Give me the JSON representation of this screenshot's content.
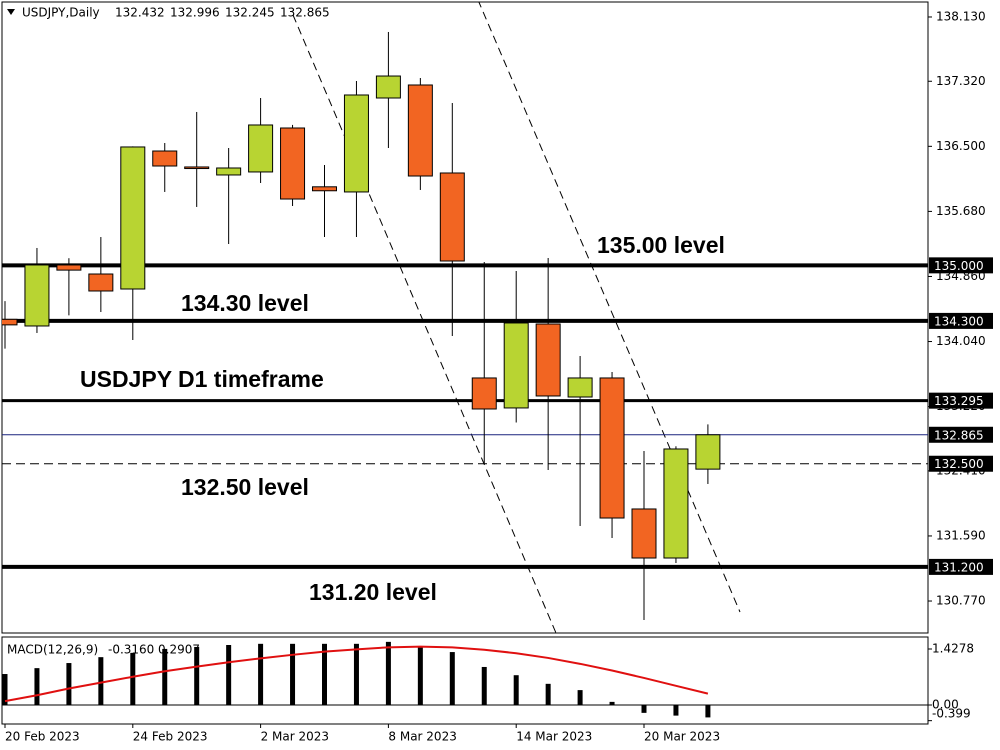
{
  "chart_data": {
    "type": "candlestick",
    "symbol": "USDJPY,Daily",
    "categories": [
      "20 Feb 2023",
      null,
      null,
      null,
      "24 Feb 2023",
      null,
      null,
      null,
      "2 Mar 2023",
      null,
      null,
      null,
      "8 Mar 2023",
      null,
      null,
      null,
      "14 Mar 2023",
      null,
      null,
      null,
      "20 Mar 2023",
      null,
      null
    ],
    "open": [
      134.32,
      134.236,
      135.005,
      134.891,
      134.702,
      136.441,
      136.24,
      136.139,
      136.177,
      136.731,
      135.99,
      135.925,
      137.109,
      137.273,
      136.164,
      133.581,
      133.203,
      134.261,
      133.341,
      133.581,
      131.93,
      131.312,
      132.432
    ],
    "high": [
      134.55,
      135.219,
      135.09,
      135.357,
      136.5,
      136.542,
      136.933,
      136.479,
      137.109,
      136.77,
      136.265,
      137.323,
      137.941,
      137.361,
      137.046,
      135.042,
      134.929,
      135.093,
      133.858,
      133.656,
      132.661,
      132.72,
      132.996
    ],
    "low": [
      133.95,
      134.148,
      134.37,
      134.412,
      134.059,
      135.925,
      135.736,
      135.269,
      136.038,
      135.748,
      135.357,
      135.357,
      136.479,
      135.95,
      134.11,
      132.497,
      133.02,
      132.421,
      131.716,
      131.564,
      130.531,
      131.249,
      132.245
    ],
    "close": [
      134.25,
      135.005,
      134.94,
      134.677,
      136.492,
      136.252,
      136.22,
      136.227,
      136.769,
      135.836,
      135.94,
      137.147,
      137.386,
      136.126,
      135.055,
      133.19,
      134.274,
      133.354,
      133.581,
      131.816,
      131.312,
      132.686,
      132.865
    ],
    "up_color": "#b8d432",
    "down_color": "#f26522",
    "ylim": [
      130.367,
      138.344
    ],
    "yticks": [
      {
        "value": 138.13,
        "label": "138.130"
      },
      {
        "value": 137.32,
        "label": "137.320"
      },
      {
        "value": 136.5,
        "label": "136.500"
      },
      {
        "value": 135.68,
        "label": "135.680"
      },
      {
        "value": 134.86,
        "label": "134.860"
      },
      {
        "value": 134.04,
        "label": "134.040"
      },
      {
        "value": 133.22,
        "label": "133.220"
      },
      {
        "value": 132.41,
        "label": "132.410"
      },
      {
        "value": 131.59,
        "label": "131.590"
      },
      {
        "value": 130.77,
        "label": "130.770"
      }
    ],
    "levels": [
      {
        "value": 135,
        "label": "135.000",
        "style": "thick",
        "color": "#000000"
      },
      {
        "value": 134.3,
        "label": "134.300",
        "style": "thick",
        "color": "#000000"
      },
      {
        "value": 133.295,
        "label": "133.295",
        "style": "medium",
        "color": "#000000"
      },
      {
        "value": 132.865,
        "label": "132.865",
        "style": "thin",
        "color": "#1a237e"
      },
      {
        "value": 132.5,
        "label": "132.500",
        "style": "dashed",
        "color": "#000000"
      },
      {
        "value": 131.2,
        "label": "131.200",
        "style": "thick",
        "color": "#000000"
      }
    ],
    "annotations": [
      "135.00 level",
      "134.30 level",
      "USDJPY D1 timeframe",
      "132.50 level",
      "131.20 level"
    ],
    "macd": {
      "label": "MACD(12,26,9)",
      "header_values": [
        {
          "value": -0.316,
          "label": "-0.3160"
        },
        {
          "value": 0.2907,
          "label": "0.2907"
        }
      ],
      "values": [
        0.79,
        0.94,
        1.07,
        1.22,
        1.33,
        1.43,
        1.48,
        1.53,
        1.56,
        1.56,
        1.56,
        1.56,
        1.61,
        1.5,
        1.35,
        0.97,
        0.76,
        0.54,
        0.38,
        0.08,
        -0.2,
        -0.27,
        -0.316
      ],
      "signal": [
        0.1,
        0.25,
        0.42,
        0.57,
        0.72,
        0.86,
        0.98,
        1.09,
        1.19,
        1.28,
        1.36,
        1.42,
        1.47,
        1.49,
        1.47,
        1.41,
        1.32,
        1.2,
        1.05,
        0.88,
        0.69,
        0.49,
        0.2907
      ],
      "color": "#000000",
      "signal_color": "#e01010",
      "ylim": [
        -0.484,
        1.734
      ],
      "yticks": [
        1.4278,
        {
          "value": 0,
          "label": "0.00"
        },
        -0.399
      ]
    }
  }
}
